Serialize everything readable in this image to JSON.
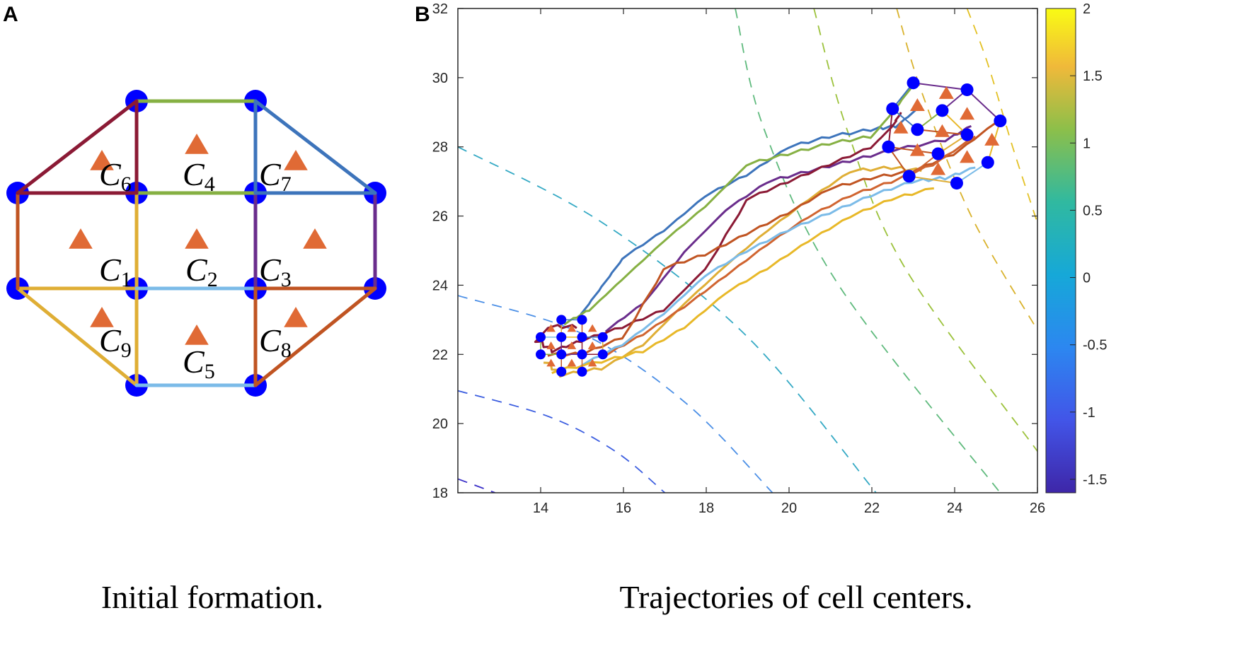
{
  "panel_a": {
    "letter": "A",
    "caption": "Initial formation.",
    "cells": [
      {
        "label": "C",
        "sub": "6",
        "color": "#8b1a35"
      },
      {
        "label": "C",
        "sub": "4",
        "color": "#86b043"
      },
      {
        "label": "C",
        "sub": "7",
        "color": "#3d74bb"
      },
      {
        "label": "C",
        "sub": "1",
        "color": "#dfae35"
      },
      {
        "label": "C",
        "sub": "2",
        "color": "#7bbbe8"
      },
      {
        "label": "C",
        "sub": "3",
        "color": "#6a2d8c"
      },
      {
        "label": "C",
        "sub": "9",
        "color": "#dfae35"
      },
      {
        "label": "C",
        "sub": "5",
        "color": "#7bbbe8"
      },
      {
        "label": "C",
        "sub": "8",
        "color": "#c05422"
      }
    ],
    "node_color": "#0000ff",
    "center_color": "#e06a35",
    "left_edge_color": "#c05422"
  },
  "chart_data": {
    "type": "line",
    "letter": "B",
    "caption": "Trajectories of cell centers.",
    "xlim": [
      12,
      26
    ],
    "ylim": [
      18,
      32
    ],
    "xticks": [
      "14",
      "16",
      "18",
      "20",
      "22",
      "24",
      "26"
    ],
    "yticks": [
      "18",
      "20",
      "22",
      "24",
      "26",
      "28",
      "30",
      "32"
    ],
    "colorbar": {
      "range": [
        -1.6,
        2
      ],
      "ticks": [
        "2",
        "1.5",
        "1",
        "0.5",
        "0",
        "-0.5",
        "-1",
        "-1.5"
      ]
    },
    "contours": [
      {
        "level": 1.8,
        "color": "#e3c125",
        "points": [
          [
            24.3,
            32
          ],
          [
            24.8,
            30.4
          ],
          [
            25.4,
            28
          ],
          [
            26,
            25.8
          ]
        ]
      },
      {
        "level": 1.5,
        "color": "#d9b22c",
        "points": [
          [
            22.6,
            32
          ],
          [
            23.2,
            29.6
          ],
          [
            24.4,
            26
          ],
          [
            26,
            22.7
          ]
        ]
      },
      {
        "level": 1.0,
        "color": "#9cc23c",
        "points": [
          [
            20.6,
            32
          ],
          [
            21.4,
            28.5
          ],
          [
            22.8,
            24.5
          ],
          [
            26,
            19.2
          ]
        ]
      },
      {
        "level": 0.5,
        "color": "#5fba7d",
        "points": [
          [
            18.7,
            32
          ],
          [
            19.4,
            28.5
          ],
          [
            21.2,
            24
          ],
          [
            25.1,
            18
          ]
        ]
      },
      {
        "level": 0.0,
        "color": "#34a9c4",
        "points": [
          [
            12,
            28
          ],
          [
            15.5,
            25.8
          ],
          [
            19,
            22.5
          ],
          [
            22.1,
            18
          ]
        ]
      },
      {
        "level": -0.5,
        "color": "#4b8fe6",
        "points": [
          [
            12,
            23.7
          ],
          [
            15,
            22.6
          ],
          [
            17.5,
            20.6
          ],
          [
            19.6,
            18
          ]
        ]
      },
      {
        "level": -1.0,
        "color": "#3c5ee0",
        "points": [
          [
            12,
            20.95
          ],
          [
            14.2,
            20.2
          ],
          [
            15.8,
            19.2
          ],
          [
            17,
            18
          ]
        ]
      },
      {
        "level": -1.5,
        "color": "#3a2fc8",
        "points": [
          [
            12,
            18.4
          ],
          [
            12.9,
            18
          ]
        ]
      }
    ],
    "series": [
      {
        "name": "C7",
        "color": "#3d74bb",
        "points": [
          [
            15,
            23.2
          ],
          [
            15.5,
            24
          ],
          [
            16,
            24.8
          ],
          [
            17,
            25.6
          ],
          [
            18,
            26.6
          ],
          [
            19,
            27.2
          ],
          [
            20,
            28
          ],
          [
            21,
            28.3
          ],
          [
            22,
            28.5
          ],
          [
            22.6,
            28.6
          ],
          [
            23.2,
            29.2
          ]
        ]
      },
      {
        "name": "C4",
        "color": "#86b043",
        "points": [
          [
            14.6,
            22.9
          ],
          [
            15.2,
            23.3
          ],
          [
            16,
            24.2
          ],
          [
            17,
            25.3
          ],
          [
            18,
            26.3
          ],
          [
            19,
            27.5
          ],
          [
            20,
            27.8
          ],
          [
            21,
            28.1
          ],
          [
            22,
            28.3
          ],
          [
            22.5,
            29
          ],
          [
            23,
            29.8
          ]
        ]
      },
      {
        "name": "C3",
        "color": "#6a2d8c",
        "points": [
          [
            15.6,
            22.7
          ],
          [
            16.5,
            23.5
          ],
          [
            17.5,
            25
          ],
          [
            18.5,
            26.2
          ],
          [
            19.5,
            27
          ],
          [
            20.5,
            27.3
          ],
          [
            21.5,
            27.6
          ],
          [
            22.5,
            27.9
          ],
          [
            23.8,
            28.2
          ],
          [
            24.4,
            28.6
          ]
        ]
      },
      {
        "name": "C6",
        "color": "#8b1a35",
        "points": [
          [
            14.9,
            22.8
          ],
          [
            14.2,
            22.8
          ],
          [
            13.9,
            22.4
          ],
          [
            14.3,
            22.1
          ],
          [
            15,
            22.4
          ],
          [
            16,
            22.8
          ],
          [
            17,
            23.3
          ],
          [
            18,
            24.5
          ],
          [
            19,
            26.5
          ],
          [
            20,
            27
          ],
          [
            21,
            27.5
          ],
          [
            22,
            28
          ],
          [
            22.5,
            28.6
          ],
          [
            22.7,
            29
          ]
        ]
      },
      {
        "name": "C9",
        "color": "#dfae35",
        "points": [
          [
            14.1,
            21.8
          ],
          [
            14.5,
            21.4
          ],
          [
            15.5,
            21.6
          ],
          [
            16.5,
            22.3
          ],
          [
            17.5,
            23.5
          ],
          [
            18.5,
            24.6
          ],
          [
            19.5,
            25.6
          ],
          [
            20.5,
            26.5
          ],
          [
            21.5,
            27.3
          ],
          [
            22.5,
            27.4
          ],
          [
            23.2,
            27.3
          ]
        ]
      },
      {
        "name": "C1",
        "color": "#c05422",
        "points": [
          [
            14.2,
            22
          ],
          [
            15,
            22
          ],
          [
            16,
            22.5
          ],
          [
            17,
            24.5
          ],
          [
            18,
            24.9
          ],
          [
            19,
            25.5
          ],
          [
            20,
            26.1
          ],
          [
            21,
            26.8
          ],
          [
            22,
            27.1
          ],
          [
            23,
            27.3
          ],
          [
            24,
            27.8
          ],
          [
            25,
            28.7
          ]
        ]
      },
      {
        "name": "C8",
        "color": "#d06430",
        "points": [
          [
            15.6,
            22
          ],
          [
            16.5,
            22.6
          ],
          [
            17.5,
            23.4
          ],
          [
            18.5,
            24.3
          ],
          [
            19.5,
            25.2
          ],
          [
            20.5,
            26
          ],
          [
            21.5,
            26.6
          ],
          [
            22.5,
            27
          ],
          [
            23.5,
            27.5
          ],
          [
            24.5,
            28.3
          ]
        ]
      },
      {
        "name": "C2",
        "color": "#7bbbe8",
        "points": [
          [
            15,
            21.7
          ],
          [
            16,
            22.3
          ],
          [
            17,
            23.2
          ],
          [
            18,
            24.3
          ],
          [
            19,
            25
          ],
          [
            20,
            25.6
          ],
          [
            21,
            26.1
          ],
          [
            22,
            26.6
          ],
          [
            23,
            27
          ],
          [
            23.8,
            27.1
          ],
          [
            24.5,
            27.4
          ]
        ]
      },
      {
        "name": "C5",
        "color": "#e8b828",
        "points": [
          [
            14.3,
            21.5
          ],
          [
            15.5,
            21.8
          ],
          [
            16.5,
            22.1
          ],
          [
            17.5,
            22.8
          ],
          [
            18.5,
            23.8
          ],
          [
            19.5,
            24.5
          ],
          [
            20.5,
            25.3
          ],
          [
            21.5,
            26
          ],
          [
            22.5,
            26.5
          ],
          [
            23.5,
            26.8
          ]
        ]
      }
    ],
    "start_nodes": [
      [
        14.5,
        23
      ],
      [
        15,
        23
      ],
      [
        14,
        22.5
      ],
      [
        14.5,
        22.5
      ],
      [
        15,
        22.5
      ],
      [
        15.5,
        22.5
      ],
      [
        14,
        22
      ],
      [
        14.5,
        22
      ],
      [
        15,
        22
      ],
      [
        15.5,
        22
      ],
      [
        14.5,
        21.5
      ],
      [
        15,
        21.5
      ]
    ],
    "start_centers": [
      [
        14.25,
        22.75
      ],
      [
        14.75,
        22.75
      ],
      [
        15.25,
        22.75
      ],
      [
        14.25,
        22.25
      ],
      [
        14.75,
        22.25
      ],
      [
        15.25,
        22.25
      ],
      [
        14.25,
        21.75
      ],
      [
        14.75,
        21.75
      ],
      [
        15.25,
        21.75
      ]
    ],
    "end_nodes": [
      [
        23,
        29.85
      ],
      [
        24.3,
        29.65
      ],
      [
        22.5,
        29.1
      ],
      [
        23.7,
        29.05
      ],
      [
        23.1,
        28.5
      ],
      [
        25.1,
        28.75
      ],
      [
        24.3,
        28.35
      ],
      [
        22.4,
        28
      ],
      [
        24.8,
        27.55
      ],
      [
        23.6,
        27.8
      ],
      [
        22.9,
        27.15
      ],
      [
        24.05,
        26.95
      ]
    ],
    "end_centers": [
      [
        23.8,
        29.55
      ],
      [
        23.1,
        29.2
      ],
      [
        24.3,
        28.95
      ],
      [
        22.7,
        28.55
      ],
      [
        23.7,
        28.45
      ],
      [
        24.9,
        28.2
      ],
      [
        23.1,
        27.9
      ],
      [
        24.3,
        27.7
      ],
      [
        23.6,
        27.35
      ]
    ]
  }
}
